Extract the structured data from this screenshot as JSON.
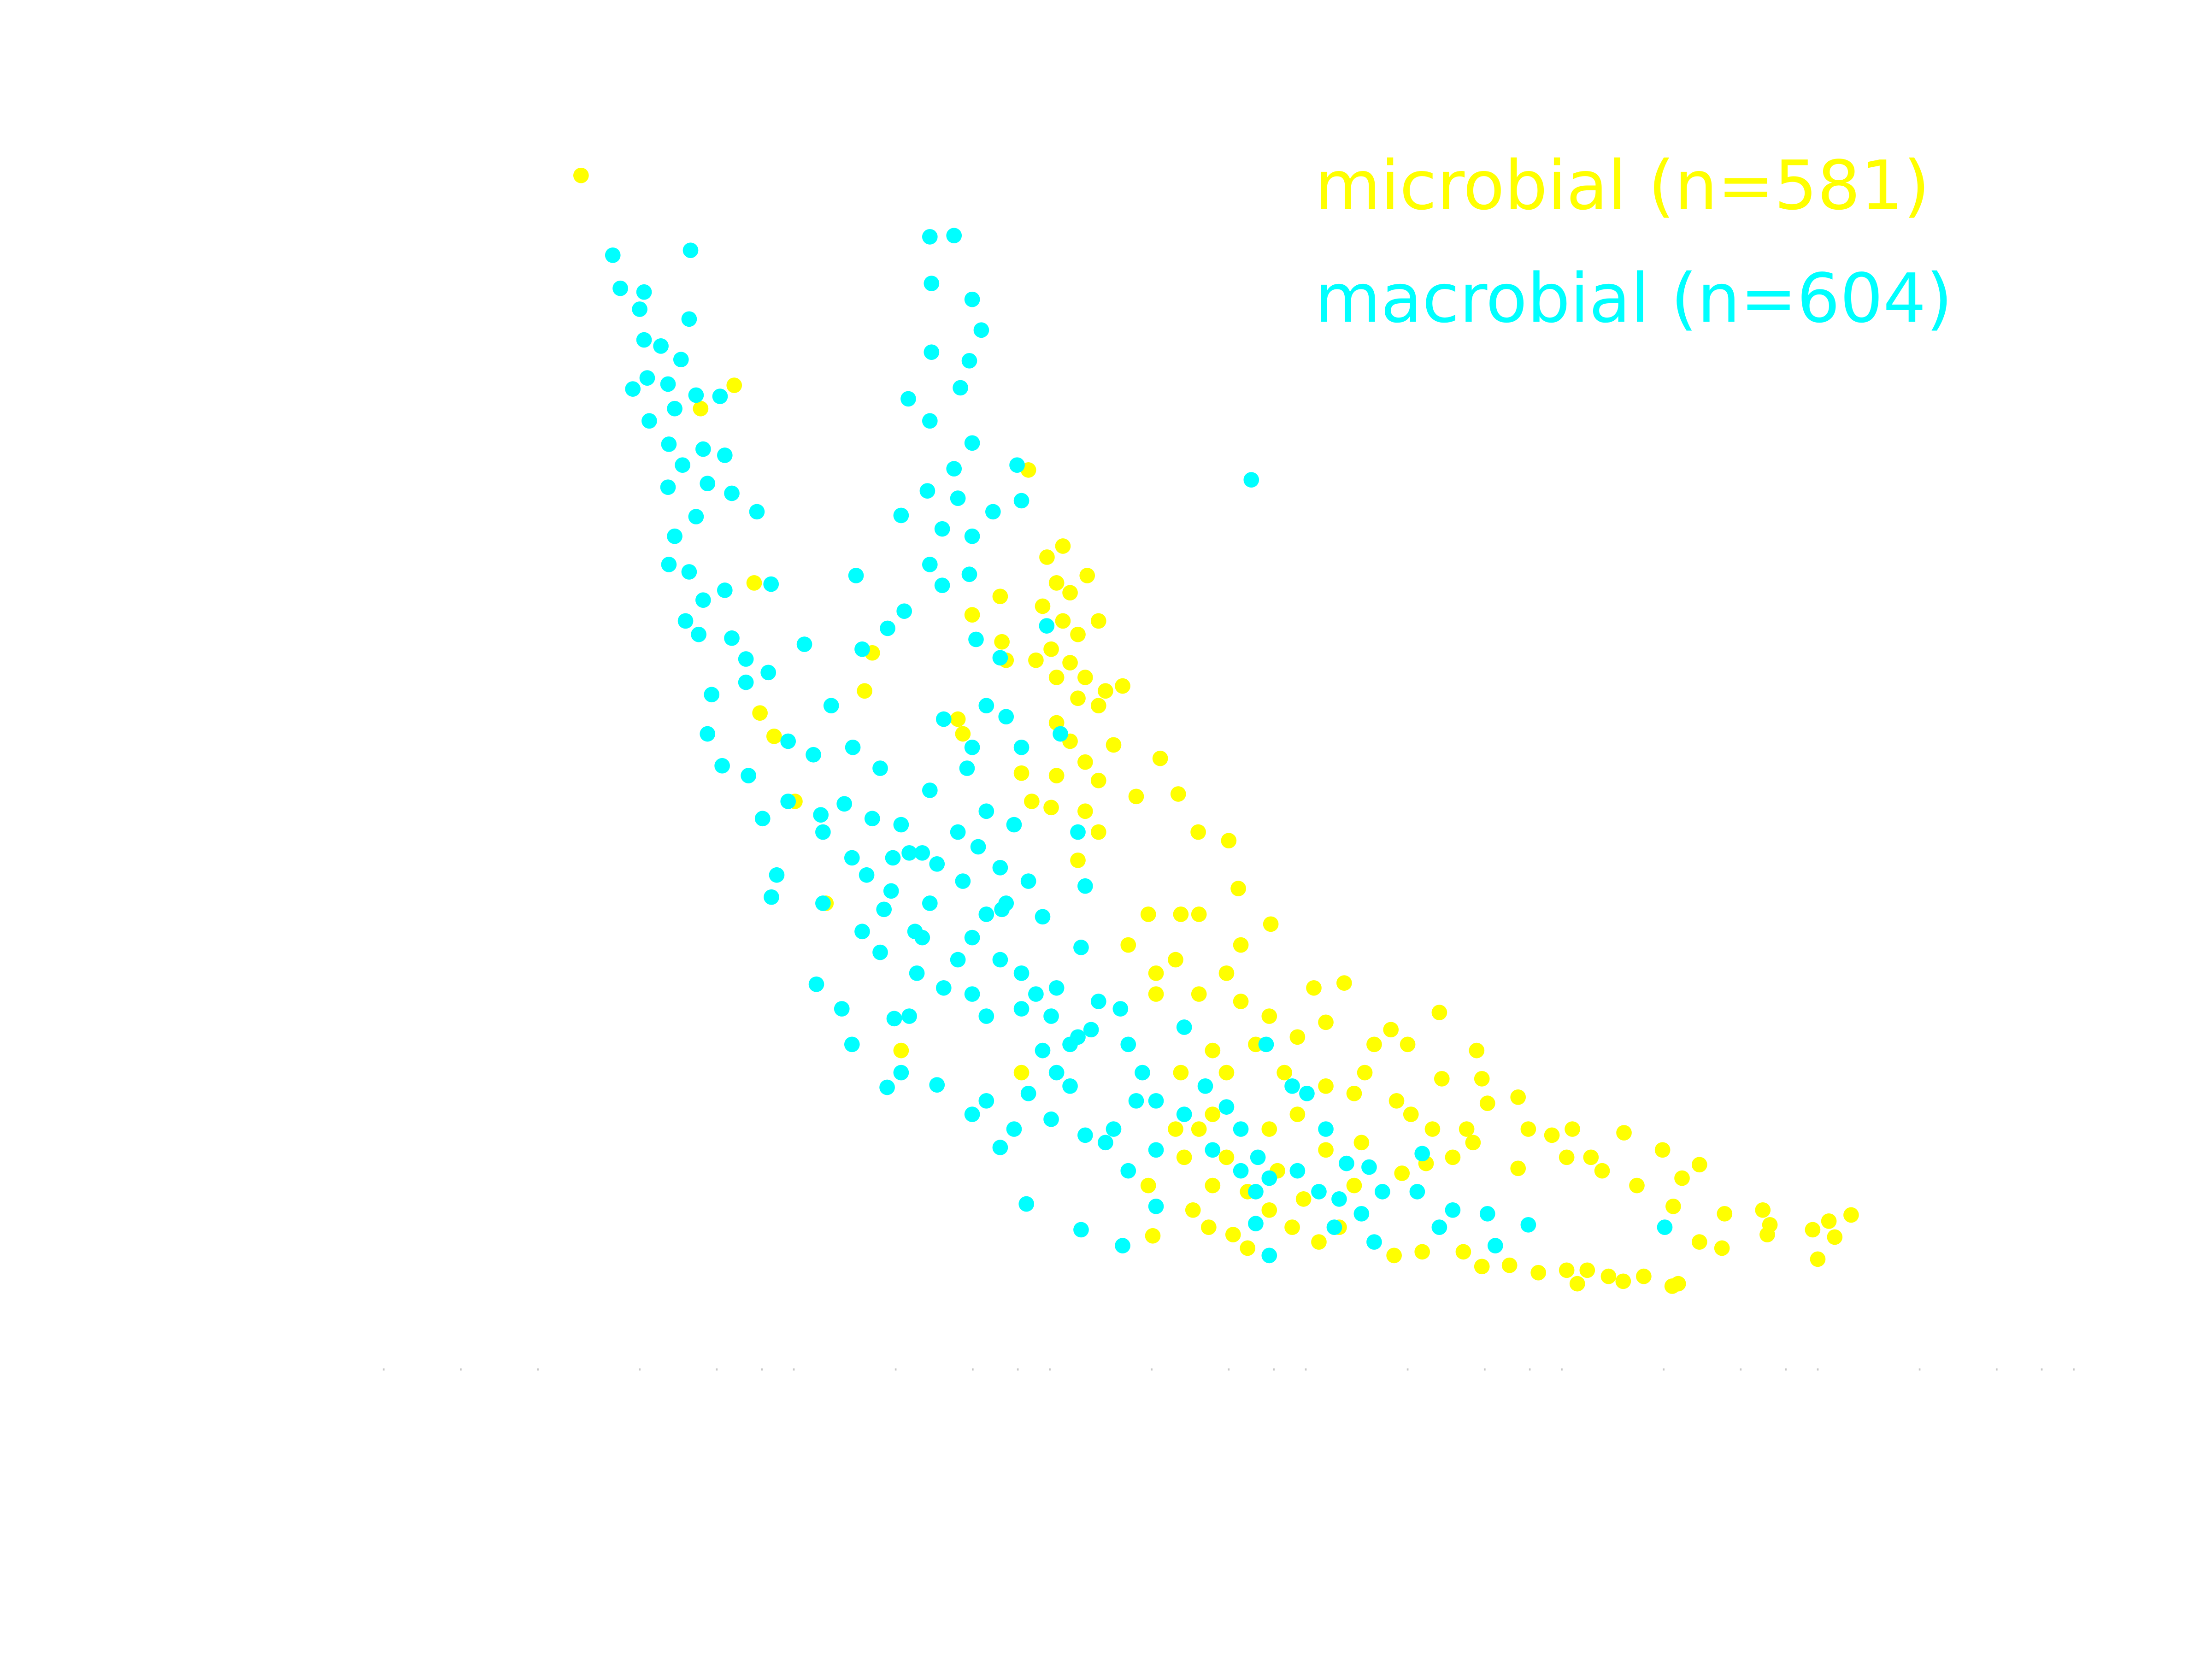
{
  "chart_data": {
    "type": "scatter",
    "xscale": "log",
    "xlim": [
      0.1,
      400000
    ],
    "ylim": [
      0,
      100
    ],
    "xticks": [
      0.1,
      0.2,
      0.4,
      1,
      2,
      3,
      4,
      10,
      20,
      30,
      40,
      100,
      200,
      300,
      400,
      1000,
      2000,
      3000,
      4000,
      10000,
      20000,
      30000,
      40000,
      100000,
      200000,
      300000,
      400000
    ],
    "legend": "upper right",
    "series": [
      {
        "name": "microbial (n=581)",
        "color": "#ffff00",
        "x": [
          0.59,
          2.34,
          1.73,
          2.8,
          2.95,
          3.35,
          4.04,
          5.34,
          7.56,
          8.1,
          10.5,
          33,
          39,
          45,
          42.5,
          48,
          56,
          37.5,
          45,
          51.5,
          62,
          40.5,
          35.3,
          48,
          55,
          42.5,
          66,
          77,
          51.5,
          62,
          42.5,
          48,
          71,
          55,
          108,
          42.5,
          62,
          87,
          127,
          55,
          40.5,
          62,
          152,
          200,
          26,
          25.6,
          27,
          19.9,
          18.3,
          31,
          218,
          130,
          153,
          97,
          292,
          223,
          196,
          124,
          104,
          104,
          153,
          223,
          288,
          430,
          565,
          371,
          479,
          255,
          173,
          130,
          196,
          330,
          479,
          618,
          740,
          860,
          1000,
          1330,
          680,
          905,
          1030,
          1360,
          1860,
          1950,
          2050,
          1700,
          1250,
          1500,
          1800,
          2700,
          2960,
          3660,
          4400,
          4180,
          2700,
          5200,
          7000,
          5750,
          7860,
          9900,
          11800,
          13800,
          10900,
          17300,
          24400,
          26000,
          13800,
          16900,
          38200,
          44200,
          54000,
          46600,
          40000,
          25400,
          11400,
          10800,
          8360,
          6950,
          6090,
          5030,
          4600,
          4180,
          3240,
          2500,
          1950,
          1650,
          1140,
          885,
          540,
          450,
          354,
          288,
          237,
          208,
          167,
          145,
          173,
          134,
          124,
          153,
          101,
          97,
          173,
          288,
          371,
          479,
          660,
          950,
          1180,
          196,
          237,
          310,
          392,
          618,
          17.5,
          34,
          51.5,
          81,
          31
        ],
        "values": [
          97.2,
          80.1,
          78.2,
          64,
          53.4,
          51.5,
          46.2,
          37.9,
          55.2,
          58.3,
          25.9,
          73.2,
          66.1,
          67,
          64,
          63.2,
          64.6,
          62.1,
          60.9,
          59.8,
          60.9,
          58.6,
          57.7,
          57.5,
          56.3,
          56.3,
          55.2,
          55.6,
          54.6,
          54,
          52.6,
          51.1,
          50.8,
          49.4,
          49.7,
          48.3,
          47.9,
          46.6,
          46.8,
          45.4,
          45.7,
          43.7,
          43.7,
          43,
          59.2,
          62.9,
          57.7,
          61.4,
          51.7,
          48.5,
          39.1,
          37,
          37,
          37,
          36.2,
          34.5,
          32.2,
          33.3,
          32.2,
          30.5,
          30.5,
          29.9,
          28.7,
          31,
          31.4,
          27,
          28.2,
          26.4,
          25.9,
          24.1,
          24.1,
          24.1,
          23,
          22.4,
          26.4,
          27.6,
          26.4,
          29,
          24.1,
          21.8,
          20.7,
          23.6,
          25.9,
          23.6,
          21.6,
          19.5,
          19.5,
          17.2,
          18.4,
          22.1,
          19.5,
          19,
          19.5,
          17.2,
          16.3,
          17.2,
          19.2,
          16.1,
          14.9,
          17.8,
          15.5,
          16.6,
          13.2,
          12.6,
          12.9,
          11.7,
          10.3,
          9.8,
          11.3,
          12,
          12.5,
          10.7,
          8.9,
          10.9,
          6.9,
          6.7,
          7.5,
          7.1,
          7.5,
          8,
          6.9,
          8,
          7.8,
          8.4,
          8.3,
          9.5,
          9.5,
          9.2,
          11.5,
          10.3,
          11.5,
          12.9,
          9.8,
          10.9,
          11.5,
          12.9,
          14.9,
          17.2,
          19.5,
          19.5,
          10.8,
          14.9,
          20.7,
          19.5,
          20.7,
          17.8,
          18.4,
          15.9,
          16.7,
          17.2,
          14.4,
          16.1,
          13.8,
          14.9,
          52.9,
          46.2,
          41.4,
          34.5,
          24.1
        ]
      },
      {
        "name": "macrobial (n=604)",
        "color": "#00ffff",
        "x": [
          0.785,
          1.58,
          0.84,
          1.04,
          1.0,
          1.56,
          1.04,
          1.21,
          1.45,
          1.07,
          1.29,
          0.94,
          1.66,
          2.06,
          1.09,
          1.37,
          1.3,
          1.77,
          2.15,
          1.47,
          1.29,
          1.84,
          2.29,
          2.87,
          1.66,
          1.37,
          1.3,
          1.56,
          2.15,
          1.77,
          3.26,
          1.51,
          2.29,
          1.7,
          2.6,
          1.91,
          3.18,
          2.6,
          1.84,
          2.1,
          2.66,
          3.8,
          3.02,
          3.43,
          3.27,
          5.2,
          4.9,
          6.16,
          6.75,
          9.87,
          10.5,
          9.26,
          14.5,
          13.6,
          7,
          4.4,
          7.4,
          9.3,
          10.8,
          5.6,
          6.8,
          4.77,
          6.3,
          8.7,
          8.1,
          10.5,
          5.2,
          6.75,
          9.75,
          12.7,
          9.6,
          7.4,
          8.7,
          12.7,
          12.1,
          15.4,
          11.3,
          19.9,
          22.6,
          17.5,
          19.9,
          22.6,
          27,
          25.6,
          31,
          35.3,
          40.5,
          37.5,
          42.5,
          48,
          33,
          22.6,
          19.9,
          29,
          25.6,
          32.4,
          40.5,
          55,
          51.5,
          62,
          75.5,
          81,
          92,
          87,
          71,
          66,
          81,
          104,
          104,
          134,
          162,
          196,
          223,
          260,
          223,
          173,
          288,
          255,
          371,
          450,
          540,
          660,
          797,
          1140,
          1500,
          2050,
          2960,
          2200,
          10100,
          1330,
          740,
          517,
          288,
          255,
          104,
          77,
          53,
          245,
          13.6,
          16.9,
          13.8,
          19.9,
          21.6,
          13.8,
          19.4,
          11.2,
          13.6,
          17.9,
          19.9,
          16.9,
          13.3,
          10.5,
          17.5,
          24,
          29.8,
          31,
          15.2,
          19.9,
          13.6,
          19.4,
          15.2,
          20.6,
          25.6,
          22.6,
          27,
          31,
          38.9,
          44,
          19.9,
          15.4,
          19,
          13.6,
          22.6,
          17.5,
          29,
          21,
          25.6,
          33,
          51.5,
          55,
          18.3,
          26,
          37.5,
          14.5,
          11.3,
          53,
          31,
          42.5,
          48,
          58,
          134,
          404,
          354,
          280,
          479,
          577,
          1090,
          707,
          3.8,
          5.1,
          7.7,
          9,
          11.9
        ],
        "values": [
          90.7,
          91.1,
          88,
          87.7,
          86.3,
          85.5,
          83.8,
          83.3,
          82.2,
          80.7,
          80.2,
          79.8,
          79.3,
          79.2,
          77.2,
          78.2,
          75.3,
          74.9,
          74.4,
          73.6,
          71.8,
          72.1,
          71.3,
          69.8,
          69.4,
          67.8,
          65.5,
          64.9,
          63.4,
          62.6,
          63.9,
          60.9,
          59.5,
          59.8,
          57.8,
          54.9,
          56.7,
          55.9,
          51.7,
          49.1,
          48.3,
          51.1,
          44.8,
          40.2,
          38.4,
          37.9,
          31.3,
          29.3,
          26.4,
          28.5,
          24.1,
          22.9,
          23.1,
          37.9,
          64.6,
          59,
          58.6,
          60.3,
          61.7,
          54,
          50.6,
          50,
          46,
          48.9,
          44.8,
          44.3,
          43.7,
          41.6,
          41.6,
          42,
          38.9,
          35.6,
          33.9,
          35.1,
          32.2,
          31,
          28.7,
          30.5,
          28.7,
          33.3,
          35.1,
          37,
          37.9,
          33.3,
          32.2,
          30.5,
          28.7,
          25.9,
          24.1,
          23,
          22.4,
          21.8,
          20.7,
          19.5,
          18,
          13.4,
          20.3,
          19,
          27,
          29.9,
          29.3,
          26.4,
          24.1,
          21.8,
          19.5,
          18.4,
          16.1,
          17.8,
          21.8,
          20.7,
          23,
          21.3,
          19.5,
          17.2,
          16.1,
          17.8,
          15.5,
          14.4,
          16.1,
          14.4,
          13.8,
          12.6,
          14.4,
          17.5,
          12.9,
          12.6,
          11.7,
          10,
          11.5,
          11.5,
          10.3,
          11.5,
          9.2,
          11.8,
          13.2,
          10,
          11.3,
          72.4,
          92.2,
          92.3,
          88.4,
          87.1,
          84.6,
          82.8,
          82.1,
          79,
          77.2,
          79.9,
          75.4,
          73.3,
          71.5,
          69.5,
          70.9,
          69.8,
          73.6,
          70.7,
          68.4,
          67.8,
          65.5,
          64.7,
          63.8,
          59.4,
          57.9,
          54,
          53.1,
          50.6,
          60.5,
          51.7,
          50.6,
          52.9,
          48.9,
          47.1,
          45.4,
          43.7,
          44.3,
          42.5,
          40.8,
          39.7,
          43.7,
          39.3,
          39.7,
          37.4,
          36.8,
          41.1,
          42,
          34.3,
          29.3,
          31,
          26.4,
          27.6,
          27.8,
          22.4,
          23,
          26.4,
          19.5,
          16.7,
          14.4,
          16.4,
          46.2,
          45.1,
          40.2,
          37.4,
          35.6
        ]
      }
    ]
  }
}
